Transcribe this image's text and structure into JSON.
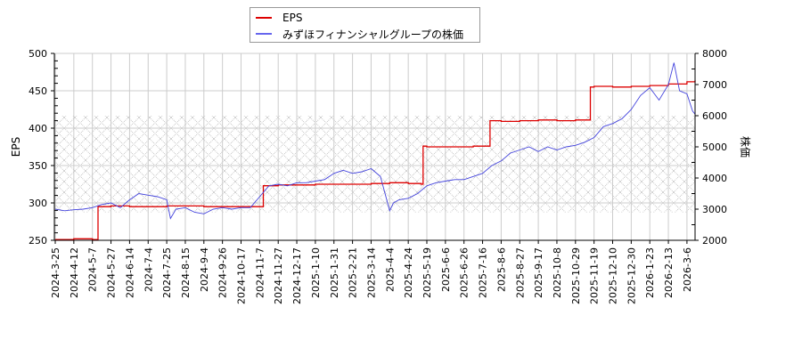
{
  "legend": {
    "items": [
      {
        "label": "EPS",
        "color": "#dd0000"
      },
      {
        "label": "みずほフィナンシャルグループの株価",
        "color": "#4444dd"
      }
    ]
  },
  "axes": {
    "left_title": "EPS",
    "right_title": "株価",
    "left_ticks": [
      "500",
      "450",
      "400",
      "350",
      "300",
      "250"
    ],
    "right_ticks": [
      "8000",
      "7000",
      "6000",
      "5000",
      "4000",
      "3000",
      "2000"
    ]
  },
  "chart_data": {
    "type": "line",
    "title": "",
    "xlabel": "",
    "ylabel": "EPS",
    "ylabel_right": "株価",
    "ylim": [
      250,
      500
    ],
    "ylim_right": [
      2000,
      8000
    ],
    "grid": true,
    "legend_position": "top",
    "hatched_band_right_axis": [
      2900,
      6000
    ],
    "x_tick_labels": [
      "2024-3-25",
      "2024-4-12",
      "2024-5-7",
      "2024-5-27",
      "2024-6-14",
      "2024-7-4",
      "2024-7-25",
      "2024-8-15",
      "2024-9-4",
      "2024-9-26",
      "2024-10-17",
      "2024-11-7",
      "2024-11-27",
      "2024-12-17",
      "2025-1-10",
      "2025-1-31",
      "2025-2-21",
      "2025-3-14",
      "2025-4-4",
      "2025-4-24",
      "2025-5-19",
      "2025-6-6",
      "2025-6-26",
      "2025-7-16",
      "2025-8-6",
      "2025-8-27",
      "2025-9-17",
      "2025-10-8",
      "2025-10-29",
      "2025-11-19",
      "2025-12-10",
      "2025-12-30",
      "2026-1-23",
      "2026-2-13",
      "2026-3-6"
    ],
    "series": [
      {
        "name": "EPS",
        "axis": "left",
        "color": "#dd0000",
        "x_index": [
          0,
          1,
          1.5,
          2,
          2.2,
          2.3,
          3,
          4,
          5,
          6,
          7,
          8,
          9,
          10,
          11,
          11.2,
          12,
          13,
          14,
          15,
          16,
          17,
          18,
          19,
          19.7,
          19.8,
          20,
          21,
          22,
          22.5,
          23.3,
          23.4,
          24,
          25,
          26,
          27,
          28,
          28.7,
          28.8,
          29,
          30,
          31,
          32,
          33,
          34,
          34.5
        ],
        "values": [
          251,
          252,
          252,
          251,
          251,
          295,
          296,
          295,
          295,
          296,
          296,
          295,
          295,
          295,
          295,
          323,
          324,
          324,
          325,
          325,
          325,
          326,
          327,
          326,
          325,
          376,
          375,
          375,
          375,
          376,
          376,
          410,
          409,
          410,
          411,
          410,
          411,
          411,
          455,
          456,
          455,
          456,
          457,
          459,
          462,
          464
        ]
      },
      {
        "name": "みずほフィナンシャルグループの株価",
        "axis": "right",
        "color": "#4444dd",
        "x_index": [
          0,
          0.5,
          1,
          1.5,
          2,
          2.5,
          3,
          3.5,
          4,
          4.5,
          5,
          5.5,
          6,
          6.2,
          6.5,
          7,
          7.5,
          8,
          8.5,
          9,
          9.5,
          10,
          10.5,
          11,
          11.5,
          12,
          12.5,
          13,
          13.5,
          14,
          14.5,
          15,
          15.5,
          16,
          16.5,
          17,
          17.5,
          18,
          18.2,
          18.5,
          19,
          19.5,
          20,
          20.5,
          21,
          21.5,
          22,
          22.5,
          23,
          23.5,
          24,
          24.5,
          25,
          25.5,
          26,
          26.5,
          27,
          27.5,
          28,
          28.5,
          29,
          29.5,
          30,
          30.5,
          31,
          31.5,
          32,
          32.5,
          33,
          33.3,
          33.6,
          34,
          34.3,
          34.6,
          35
        ],
        "values": [
          3000,
          2950,
          2980,
          3000,
          3050,
          3150,
          3200,
          3050,
          3300,
          3500,
          3450,
          3400,
          3300,
          2700,
          3000,
          3050,
          2900,
          2850,
          3000,
          3050,
          3000,
          3050,
          3050,
          3400,
          3750,
          3800,
          3750,
          3850,
          3850,
          3900,
          3950,
          4150,
          4250,
          4150,
          4200,
          4300,
          4050,
          2950,
          3200,
          3300,
          3350,
          3500,
          3750,
          3850,
          3900,
          3950,
          3950,
          4050,
          4150,
          4400,
          4550,
          4800,
          4900,
          5000,
          4850,
          5000,
          4900,
          5000,
          5050,
          5150,
          5300,
          5650,
          5750,
          5900,
          6200,
          6650,
          6900,
          6500,
          7000,
          7700,
          6800,
          6700,
          6150,
          6050,
          6000
        ]
      }
    ]
  }
}
